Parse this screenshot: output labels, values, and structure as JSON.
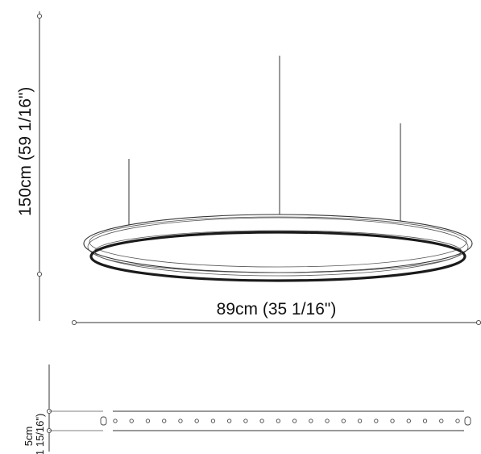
{
  "dimensions": {
    "height_label": "150cm (59 1/16\")",
    "width_label": "89cm (35 1/16\")",
    "profile_label_line1": "5cm",
    "profile_label_line2": "(1 15/16\")"
  },
  "profile": {
    "led_dot_count": 22
  },
  "colors": {
    "line": "#333333",
    "ring": "#1a1a1a",
    "background": "#ffffff"
  }
}
